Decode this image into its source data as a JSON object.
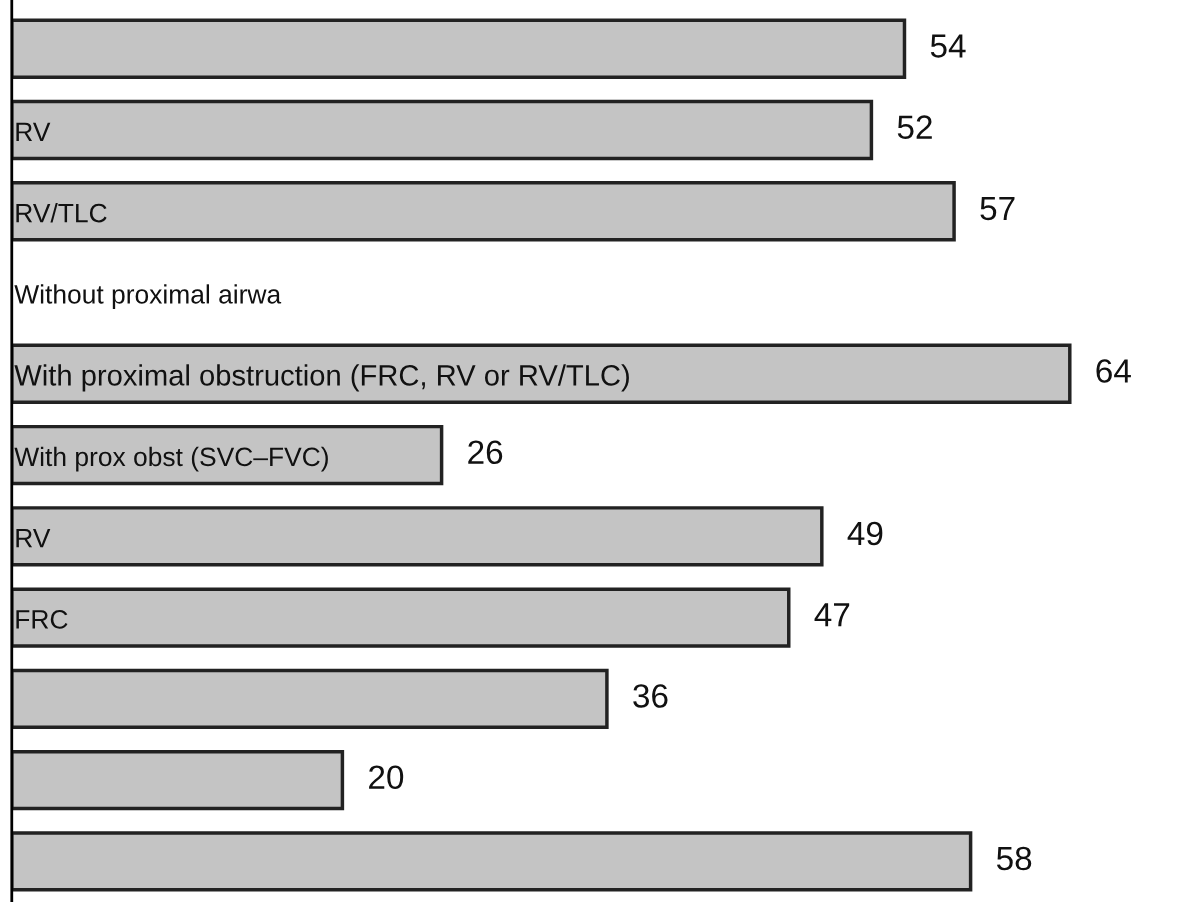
{
  "chart_data": {
    "type": "bar",
    "orientation": "horizontal",
    "categories": [
      null,
      "RV",
      "RV/TLC",
      "Without proximal airwa",
      "With proximal obstruction (FRC, RV or RV/TLC)",
      "With prox obst (SVC–FVC)",
      "RV",
      "FRC",
      null,
      null,
      null
    ],
    "values": [
      54,
      52,
      57,
      null,
      64,
      26,
      49,
      47,
      36,
      20,
      58
    ],
    "color": "#c4c4c4",
    "data_labels": true
  }
}
